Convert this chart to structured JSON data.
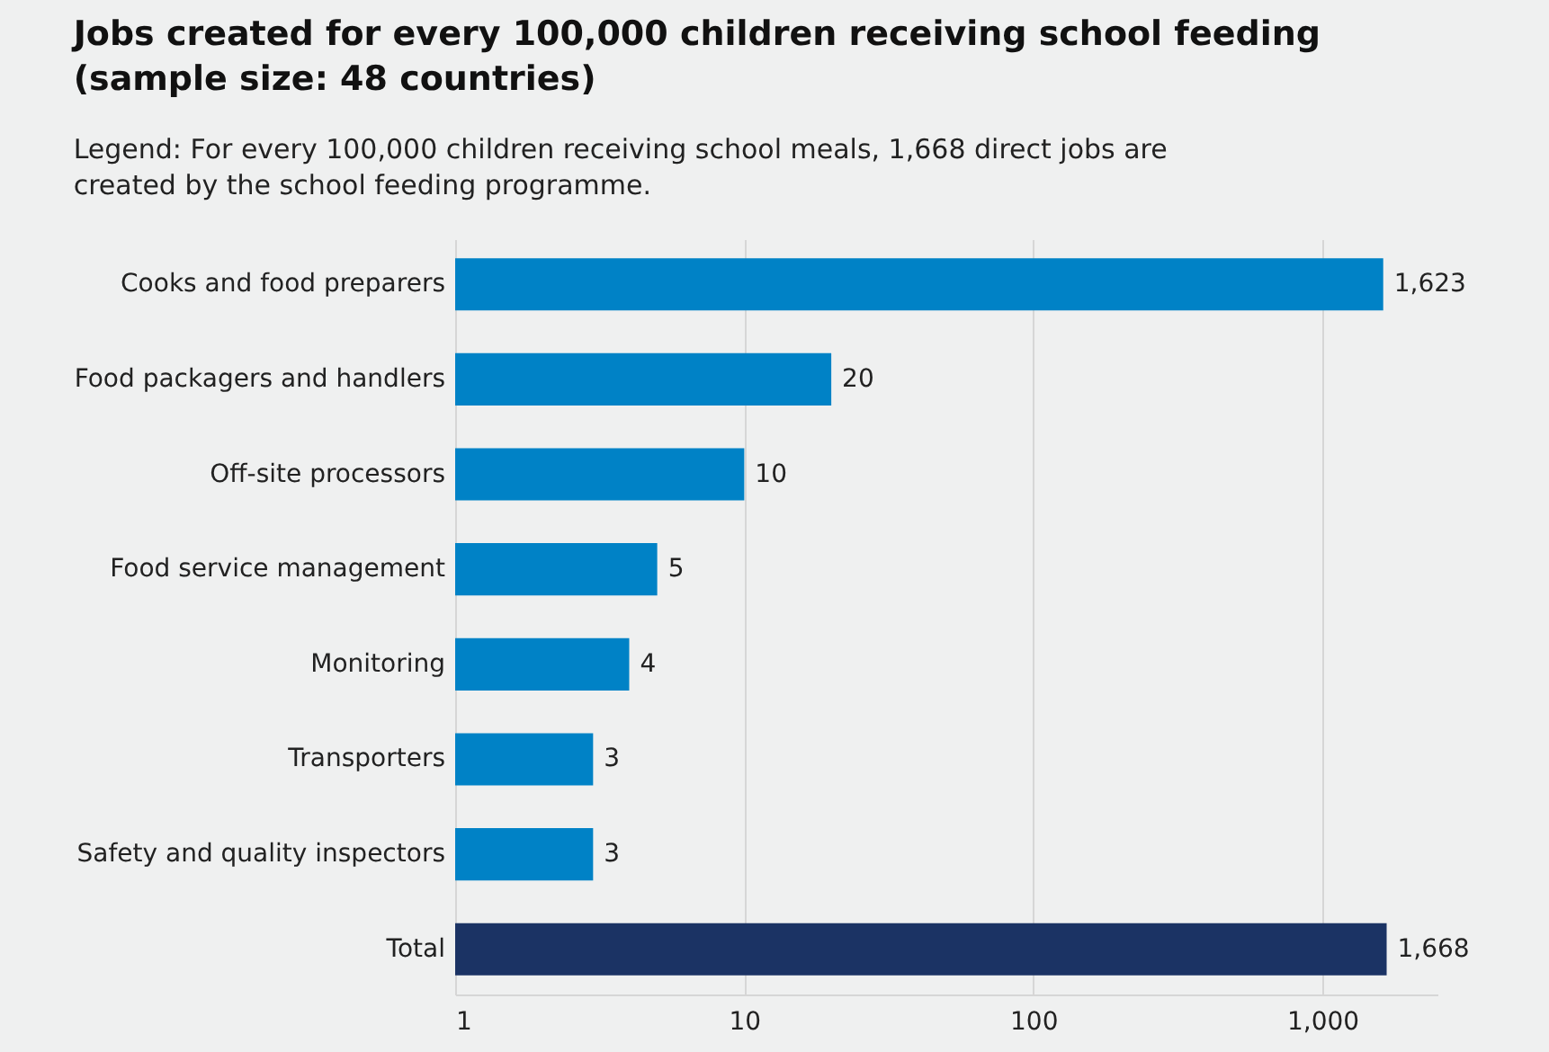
{
  "chart_data": {
    "type": "bar",
    "orientation": "horizontal",
    "title": "Jobs created for every 100,000 children receiving school feeding (sample size: 48 countries)",
    "subtitle": "Legend: For every 100,000 children receiving school meals, 1,668 direct jobs are created by the school feeding programme.",
    "categories": [
      "Cooks and food preparers",
      "Food packagers and handlers",
      "Off-site processors",
      "Food service management",
      "Monitoring",
      "Transporters",
      "Safety and quality inspectors",
      "Total"
    ],
    "values": [
      1623,
      20,
      10,
      5,
      4,
      3,
      3,
      1668
    ],
    "value_labels": [
      "1,623",
      "20",
      "10",
      "5",
      "4",
      "3",
      "3",
      "1,668"
    ],
    "colors": [
      "#0082c6",
      "#0082c6",
      "#0082c6",
      "#0082c6",
      "#0082c6",
      "#0082c6",
      "#0082c6",
      "#1b3364"
    ],
    "log": "x",
    "xlim": [
      1,
      2500
    ],
    "xticks": [
      1,
      10,
      100,
      {
        "value": 1000,
        "label": "1,000"
      }
    ],
    "grid": "x"
  }
}
